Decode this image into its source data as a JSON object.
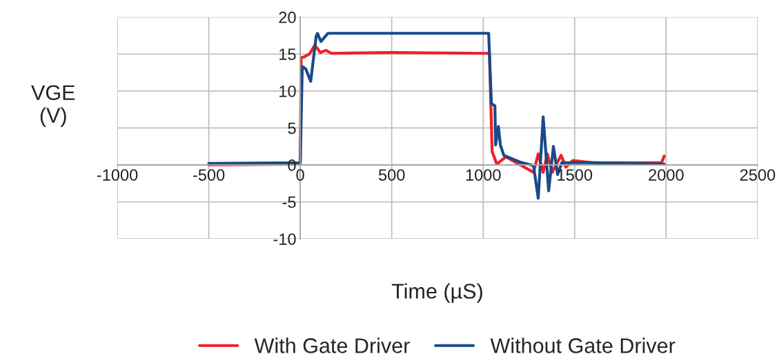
{
  "chart_data": {
    "type": "line",
    "xlabel": "Time (µS)",
    "ylabel": "VGE\n(V)",
    "xlim": [
      -1000,
      2500
    ],
    "xticks": [
      -1000,
      -500,
      0,
      500,
      1000,
      1500,
      2000,
      2500
    ],
    "ylim": [
      -10,
      20
    ],
    "yticks": [
      -10,
      -5,
      0,
      5,
      10,
      15,
      20
    ],
    "grid": true,
    "legend": "bottom",
    "marker": "none",
    "line_style": "solid",
    "series": [
      {
        "name": "With Gate Driver",
        "color": "#ee2027",
        "x": [
          -500,
          -10,
          0,
          5,
          20,
          50,
          80,
          110,
          140,
          170,
          500,
          1000,
          1034,
          1049,
          1075,
          1124,
          1275,
          1301,
          1328,
          1351,
          1377,
          1426,
          1452,
          1490,
          1600,
          1950,
          1975,
          1990
        ],
        "values": [
          0,
          0.1,
          0.2,
          14.5,
          14.6,
          15,
          16.2,
          15.2,
          15.5,
          15.1,
          15.2,
          15.1,
          15.1,
          1.8,
          0.1,
          1.1,
          -1,
          1.5,
          -1,
          1.5,
          -1,
          1.3,
          -0.3,
          0.6,
          0.3,
          0.3,
          0.3,
          1.2
        ]
      },
      {
        "name": "Without Gate Driver",
        "color": "#1a4a8a",
        "x": [
          -500,
          0,
          5,
          11,
          30,
          57,
          87,
          94,
          113,
          151,
          500,
          1000,
          1030,
          1045,
          1064,
          1068,
          1083,
          1094,
          1113,
          1200,
          1275,
          1301,
          1328,
          1358,
          1384,
          1407,
          1430,
          1600,
          1990
        ],
        "values": [
          0.2,
          0.3,
          6,
          13.3,
          13,
          11.3,
          17.4,
          17.8,
          16.7,
          17.8,
          17.8,
          17.8,
          17.8,
          8.3,
          8,
          2.7,
          5.2,
          2.7,
          1.3,
          0.4,
          -0.1,
          -4.5,
          6.5,
          -3.5,
          2.5,
          -1.3,
          0.3,
          0.3,
          0.1
        ]
      }
    ]
  }
}
